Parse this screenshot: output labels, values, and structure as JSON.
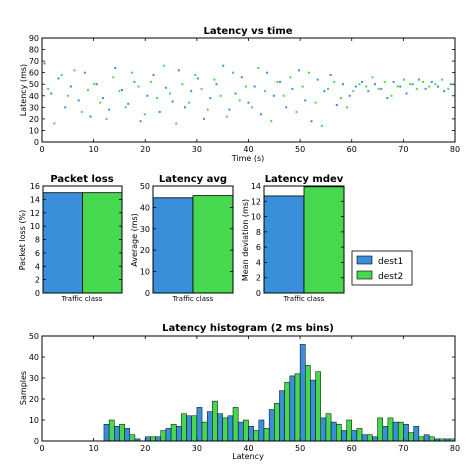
{
  "colors": {
    "dest1": "#3a8fdb",
    "dest2": "#46d84e",
    "edge": "#000000"
  },
  "legend": {
    "items": [
      {
        "name": "dest1",
        "color": "#3a8fdb"
      },
      {
        "name": "dest2",
        "color": "#46d84e"
      }
    ]
  },
  "chart_data": [
    {
      "type": "scatter",
      "title": "Latency vs time",
      "xlabel": "Time (s)",
      "ylabel": "Latency (ms)",
      "xlim": [
        0,
        80
      ],
      "ylim": [
        0,
        90
      ],
      "xticks": [
        0,
        10,
        20,
        30,
        40,
        50,
        60,
        70,
        80
      ],
      "yticks": [
        0,
        10,
        20,
        30,
        40,
        50,
        60,
        70,
        80,
        90
      ],
      "series": [
        {
          "name": "dest1",
          "x": [
            0.5,
            1.8,
            3.2,
            4.5,
            5.6,
            7.1,
            8.3,
            9.4,
            10.6,
            11.8,
            13.0,
            14.2,
            15.5,
            16.7,
            17.9,
            19.1,
            20.4,
            21.6,
            22.8,
            24.0,
            25.3,
            26.5,
            27.7,
            28.9,
            30.2,
            31.4,
            32.6,
            33.8,
            35.1,
            36.3,
            37.5,
            38.7,
            40.0,
            41.2,
            42.4,
            43.6,
            44.9,
            46.1,
            47.3,
            48.5,
            49.8,
            51.0,
            52.2,
            53.4,
            54.7,
            55.9,
            57.1,
            58.3,
            59.6,
            60.8,
            62.0,
            63.2,
            64.5,
            65.7,
            66.9,
            68.1,
            69.4,
            70.6,
            71.8,
            73.0,
            74.3,
            75.5,
            76.7,
            77.9,
            79.2
          ],
          "y": [
            68,
            42,
            55,
            30,
            48,
            36,
            60,
            22,
            50,
            38,
            28,
            64,
            45,
            33,
            52,
            18,
            40,
            58,
            26,
            47,
            35,
            62,
            30,
            44,
            55,
            20,
            38,
            50,
            66,
            28,
            42,
            56,
            34,
            48,
            24,
            60,
            40,
            52,
            30,
            46,
            62,
            36,
            18,
            54,
            44,
            58,
            32,
            50,
            40,
            48,
            52,
            44,
            50,
            46,
            38,
            52,
            48,
            42,
            50,
            54,
            46,
            52,
            48,
            44,
            50
          ]
        },
        {
          "name": "dest2",
          "x": [
            1.2,
            2.4,
            3.8,
            5.0,
            6.3,
            7.7,
            8.9,
            10.1,
            11.3,
            12.5,
            13.8,
            15.0,
            16.2,
            17.4,
            18.7,
            19.9,
            21.1,
            22.3,
            23.6,
            24.8,
            26.0,
            27.2,
            28.5,
            29.7,
            30.9,
            32.1,
            33.4,
            34.6,
            35.8,
            37.0,
            38.3,
            39.5,
            40.7,
            41.9,
            43.2,
            44.4,
            45.6,
            46.8,
            48.1,
            49.3,
            50.5,
            51.7,
            53.0,
            54.2,
            55.4,
            56.6,
            57.9,
            59.1,
            60.3,
            61.5,
            62.8,
            64.0,
            65.2,
            66.4,
            67.7,
            68.9,
            70.1,
            71.3,
            72.6,
            73.8,
            75.0,
            76.2,
            77.5,
            78.7
          ],
          "y": [
            46,
            16,
            58,
            40,
            62,
            26,
            45,
            50,
            34,
            20,
            56,
            44,
            30,
            60,
            48,
            24,
            52,
            38,
            66,
            42,
            16,
            50,
            34,
            58,
            46,
            28,
            54,
            40,
            22,
            60,
            36,
            48,
            30,
            64,
            44,
            18,
            52,
            40,
            56,
            26,
            48,
            60,
            34,
            14,
            46,
            52,
            38,
            30,
            44,
            50,
            48,
            56,
            46,
            52,
            40,
            48,
            54,
            50,
            46,
            52,
            48,
            50,
            54,
            46
          ]
        }
      ]
    },
    {
      "type": "bar",
      "title": "Packet loss",
      "xlabel": "Traffic class",
      "ylabel": "Packet loss (%)",
      "ylim": [
        0,
        16
      ],
      "yticks": [
        0,
        2,
        4,
        6,
        8,
        10,
        12,
        14,
        16
      ],
      "series": [
        {
          "name": "dest1",
          "values": [
            15
          ]
        },
        {
          "name": "dest2",
          "values": [
            15
          ]
        }
      ]
    },
    {
      "type": "bar",
      "title": "Latency avg",
      "xlabel": "Traffic class",
      "ylabel": "Average (ms)",
      "ylim": [
        0,
        50
      ],
      "yticks": [
        0,
        10,
        20,
        30,
        40,
        50
      ],
      "series": [
        {
          "name": "dest1",
          "values": [
            44.5
          ]
        },
        {
          "name": "dest2",
          "values": [
            45.5
          ]
        }
      ]
    },
    {
      "type": "bar",
      "title": "Latency mdev",
      "xlabel": "Traffic class",
      "ylabel": "Mean deviation (ms)",
      "ylim": [
        0,
        14
      ],
      "yticks": [
        0,
        2,
        4,
        6,
        8,
        10,
        12,
        14
      ],
      "series": [
        {
          "name": "dest1",
          "values": [
            12.7
          ]
        },
        {
          "name": "dest2",
          "values": [
            13.9
          ]
        }
      ]
    },
    {
      "type": "bar",
      "title": "Latency histogram (2 ms bins)",
      "xlabel": "Latency",
      "ylabel": "Samples",
      "xlim": [
        0,
        80
      ],
      "ylim": [
        0,
        50
      ],
      "xticks": [
        0,
        10,
        20,
        30,
        40,
        50,
        60,
        70,
        80
      ],
      "yticks": [
        0,
        10,
        20,
        30,
        40,
        50
      ],
      "bin_width": 2,
      "bin_starts": [
        12,
        14,
        16,
        18,
        20,
        22,
        24,
        26,
        28,
        30,
        32,
        34,
        36,
        38,
        40,
        42,
        44,
        46,
        48,
        50,
        52,
        54,
        56,
        58,
        60,
        62,
        64,
        66,
        68,
        70,
        72,
        74,
        76,
        78
      ],
      "series": [
        {
          "name": "dest1",
          "values": [
            8,
            7,
            6,
            1,
            2,
            2,
            6,
            7,
            12,
            16,
            14,
            13,
            12,
            9,
            7,
            10,
            15,
            24,
            31,
            46,
            29,
            11,
            9,
            5,
            5,
            3,
            2,
            7,
            9,
            8,
            7,
            3,
            1,
            1
          ]
        },
        {
          "name": "dest2",
          "values": [
            10,
            8,
            3,
            0,
            2,
            5,
            8,
            13,
            12,
            9,
            19,
            11,
            16,
            10,
            5,
            6,
            18,
            28,
            32,
            36,
            33,
            13,
            8,
            10,
            6,
            3,
            11,
            11,
            9,
            4,
            2,
            2,
            1,
            1
          ]
        }
      ]
    }
  ]
}
